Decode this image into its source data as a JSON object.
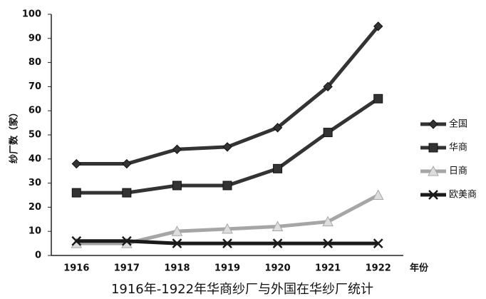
{
  "chart_data": {
    "type": "line",
    "title": "1916年-1922年华商纱厂与外国在华纱厂统计",
    "y_label": "纱厂数（家）",
    "x_label": "年份",
    "categories": [
      "1916",
      "1917",
      "1918",
      "1919",
      "1920",
      "1921",
      "1922"
    ],
    "series": [
      {
        "name": "全国",
        "color": "#333333",
        "marker": "diamond",
        "values": [
          38,
          38,
          44,
          45,
          53,
          70,
          95
        ]
      },
      {
        "name": "华商",
        "color": "#333333",
        "marker": "square",
        "values": [
          26,
          26,
          29,
          29,
          36,
          51,
          65
        ]
      },
      {
        "name": "日商",
        "color": "#a6a6a6",
        "marker": "triangle",
        "values": [
          5,
          5,
          10,
          11,
          12,
          14,
          25
        ]
      },
      {
        "name": "欧美商",
        "color": "#1a1a1a",
        "marker": "x",
        "values": [
          6,
          6,
          5,
          5,
          5,
          5,
          5
        ]
      }
    ],
    "ylim": [
      0,
      100
    ],
    "yticks": [
      0,
      10,
      20,
      30,
      40,
      50,
      60,
      70,
      80,
      90,
      100
    ],
    "grid": false,
    "legend": "right"
  }
}
